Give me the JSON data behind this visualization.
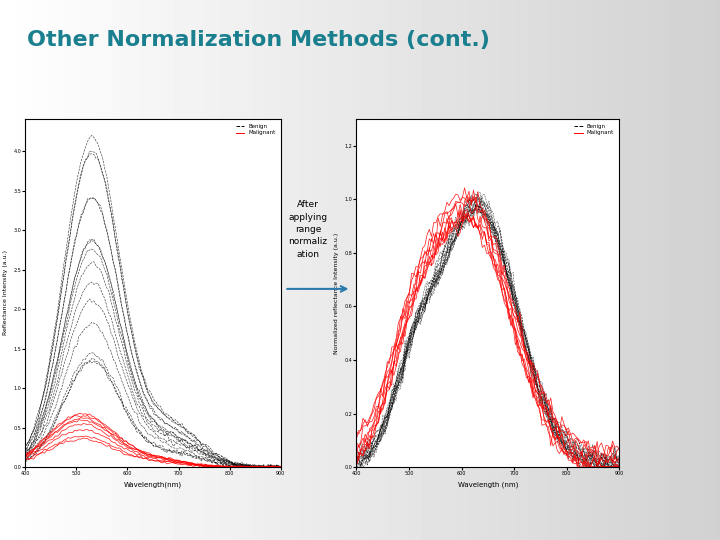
{
  "title": "Other Normalization Methods (cont.)",
  "title_color": "#1a7f8e",
  "slide_bg_left": "#f0f0f0",
  "slide_bg_right": "#d0d5d8",
  "right_bar_color": "#1a7f8e",
  "right_bar_color2": "#2a6fad",
  "annotation_text": "After\napplying\nrange\nnormaliz\nation",
  "arrow_color": "#2a7aad",
  "left_plot": {
    "ylabel": "Reflectance Intensity (a.u.)",
    "xlabel": "Wavelength(nm)",
    "legend_benign": "Benign",
    "legend_malignant": "Malignant"
  },
  "right_plot": {
    "ylabel": "Normalized reflectance Intensity (a.u.)",
    "xlabel": "Wavelength (nm)",
    "legend_benign": "Benign",
    "legend_malignant": "Malignant"
  }
}
